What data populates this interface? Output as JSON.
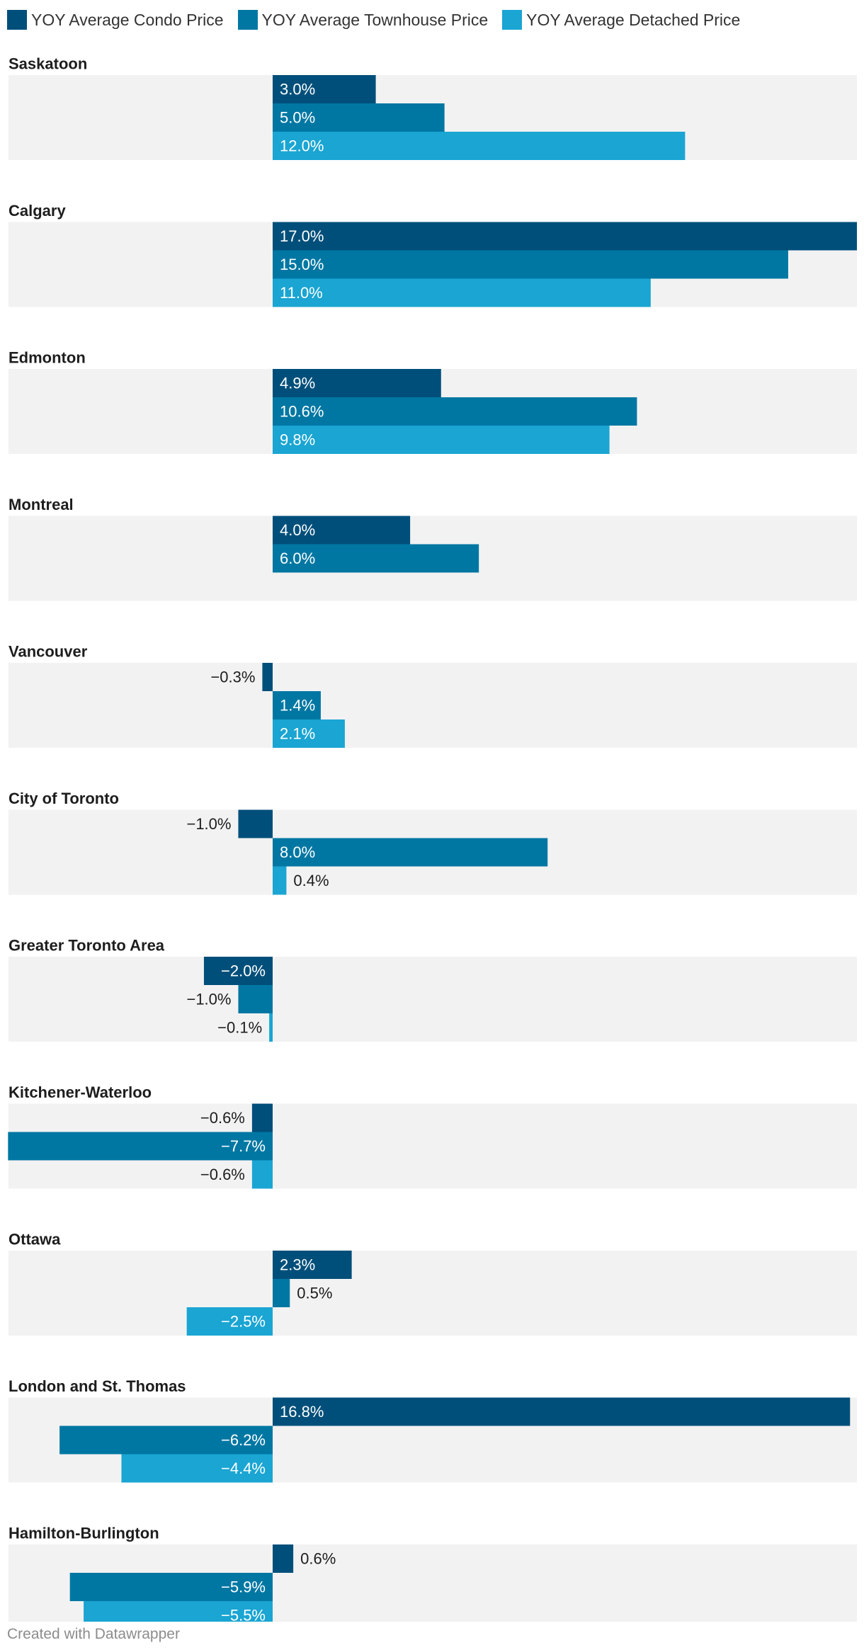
{
  "chart_data": {
    "type": "bar",
    "orientation": "horizontal",
    "grouped_small_multiples": true,
    "title": "",
    "xlabel": "",
    "ylabel": "",
    "unit": "%",
    "xlim": [
      -7.7,
      17.0
    ],
    "legend_position": "top-left",
    "grid": false,
    "series": [
      {
        "name": "YOY Average Condo Price",
        "color": "#004f7a"
      },
      {
        "name": "YOY Average Townhouse Price",
        "color": "#0077a3"
      },
      {
        "name": "YOY Average Detached Price",
        "color": "#1aa5d3"
      }
    ],
    "groups": [
      {
        "name": "Saskatoon",
        "values": [
          3.0,
          5.0,
          12.0
        ],
        "labels": [
          "3.0%",
          "5.0%",
          "12.0%"
        ]
      },
      {
        "name": "Calgary",
        "values": [
          17.0,
          15.0,
          11.0
        ],
        "labels": [
          "17.0%",
          "15.0%",
          "11.0%"
        ]
      },
      {
        "name": "Edmonton",
        "values": [
          4.9,
          10.6,
          9.8
        ],
        "labels": [
          "4.9%",
          "10.6%",
          "9.8%"
        ]
      },
      {
        "name": "Montreal",
        "values": [
          4.0,
          6.0,
          null
        ],
        "labels": [
          "4.0%",
          "6.0%",
          null
        ]
      },
      {
        "name": "Vancouver",
        "values": [
          -0.3,
          1.4,
          2.1
        ],
        "labels": [
          "−0.3%",
          "1.4%",
          "2.1%"
        ]
      },
      {
        "name": "City of Toronto",
        "values": [
          -1.0,
          8.0,
          0.4
        ],
        "labels": [
          "−1.0%",
          "8.0%",
          "0.4%"
        ]
      },
      {
        "name": "Greater Toronto Area",
        "values": [
          -2.0,
          -1.0,
          -0.1
        ],
        "labels": [
          "−2.0%",
          "−1.0%",
          "−0.1%"
        ]
      },
      {
        "name": "Kitchener-Waterloo",
        "values": [
          -0.6,
          -7.7,
          -0.6
        ],
        "labels": [
          "−0.6%",
          "−7.7%",
          "−0.6%"
        ]
      },
      {
        "name": "Ottawa",
        "values": [
          2.3,
          0.5,
          -2.5
        ],
        "labels": [
          "2.3%",
          "0.5%",
          "−2.5%"
        ]
      },
      {
        "name": "London and St. Thomas",
        "values": [
          16.8,
          -6.2,
          -4.4
        ],
        "labels": [
          "16.8%",
          "−6.2%",
          "−4.4%"
        ]
      },
      {
        "name": "Hamilton-Burlington",
        "values": [
          0.6,
          -5.9,
          -5.5
        ],
        "labels": [
          "0.6%",
          "−5.9%",
          "−5.5%"
        ]
      }
    ]
  },
  "colors": {
    "panel_background": "#f2f2f2",
    "label_dark": "#1d1d1d",
    "label_light": "#ffffff"
  },
  "footer": {
    "credit": "Created with Datawrapper"
  }
}
